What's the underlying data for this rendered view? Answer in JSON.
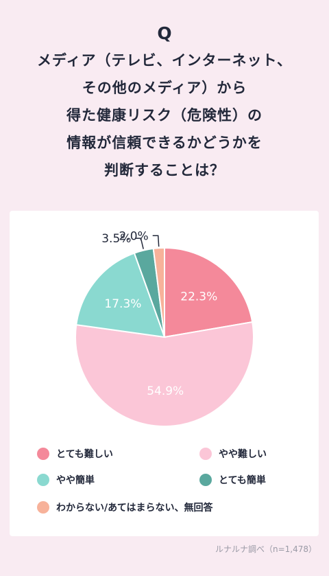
{
  "header": {
    "q_mark": "Q",
    "question_lines": [
      "メディア（テレビ、インターネット、",
      "その他のメディア）から",
      "得た健康リスク（危険性）の",
      "情報が信頼できるかどうかを",
      "判断することは？"
    ]
  },
  "chart_data": {
    "type": "pie",
    "title": "メディア（テレビ、インターネット、その他のメディア）から得た健康リスク（危険性）の情報が信頼できるかどうかを判断することは？",
    "unit": "%",
    "slices": [
      {
        "label": "とても難しい",
        "value": 22.3,
        "value_label": "22.3%",
        "color": "#f4899a"
      },
      {
        "label": "やや難しい",
        "value": 54.9,
        "value_label": "54.9%",
        "color": "#fbc6d7"
      },
      {
        "label": "やや簡単",
        "value": 17.3,
        "value_label": "17.3%",
        "color": "#8ad9d0"
      },
      {
        "label": "とても簡単",
        "value": 3.5,
        "value_label": "3.5%",
        "color": "#5aa89e"
      },
      {
        "label": "わからない/あてはまらない、無回答",
        "value": 2.0,
        "value_label": "2.0%",
        "color": "#f7b29a"
      }
    ],
    "legend_position": "bottom"
  },
  "footer": {
    "source": "ルナルナ調べ（n=1,478）"
  }
}
